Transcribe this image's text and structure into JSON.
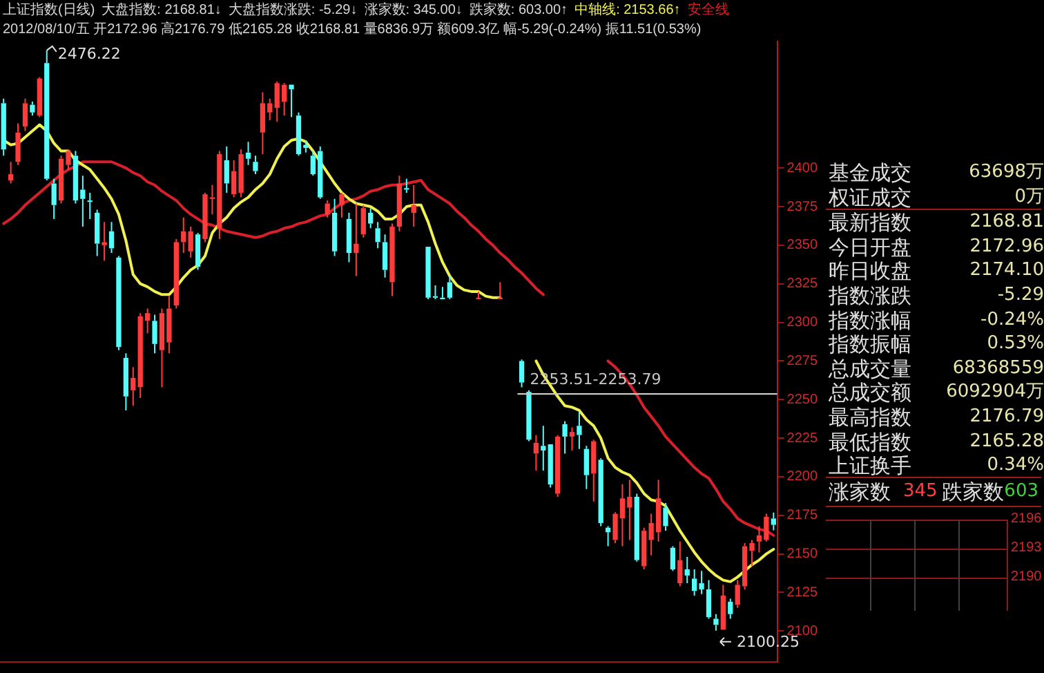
{
  "chart_data": [
    {
      "type": "candlestick",
      "title": "上证指数(日线)",
      "subtitle": "2012/08/10/五 开2172.96 高2176.79 低2165.28 收2168.81 量6836.9万 额609.3亿 幅-5.29(-0.24%) 振11.51(0.53%)",
      "annotations": [
        "大盘指数: 2168.81↓",
        "大盘指数涨跌: -5.29↓",
        "涨家数: 345.00↓",
        "跌家数: 603.00↑"
      ],
      "value_labels": [
        null,
        null,
        null,
        null,
        null,
        null,
        "2476.22",
        null,
        null,
        null,
        null,
        null,
        null,
        null,
        null,
        null,
        null,
        null,
        null,
        null,
        null,
        null,
        null,
        null,
        null,
        null,
        null,
        null,
        null,
        null,
        null,
        null,
        null,
        null,
        null,
        null,
        null,
        null,
        null,
        null,
        null,
        null,
        null,
        null,
        null,
        null,
        null,
        null,
        null,
        null,
        null,
        null,
        null,
        null,
        null,
        null,
        null,
        null,
        null,
        null,
        null,
        null,
        null,
        null,
        null,
        null,
        null,
        null,
        null,
        null,
        null,
        null,
        null,
        null,
        null,
        null,
        null,
        null,
        null,
        null,
        null,
        null,
        null,
        null,
        null,
        null,
        null,
        null,
        null,
        null,
        null,
        null,
        null,
        null,
        null,
        null,
        null,
        null,
        null,
        "2100.25",
        null,
        null,
        null,
        null,
        null,
        null,
        null,
        null
      ],
      "categories": [
        null,
        null,
        null,
        null,
        null,
        null,
        null,
        null,
        null,
        null,
        null,
        null,
        null,
        null,
        null,
        null,
        null,
        null,
        null,
        null,
        null,
        null,
        null,
        null,
        null,
        null,
        null,
        null,
        null,
        null,
        null,
        null,
        null,
        null,
        null,
        null,
        null,
        null,
        null,
        null,
        null,
        null,
        null,
        null,
        null,
        null,
        null,
        null,
        null,
        null,
        null,
        null,
        null,
        null,
        null,
        null,
        null,
        null,
        null,
        null,
        null,
        null,
        null,
        null,
        null,
        null,
        null,
        null,
        null,
        null,
        null,
        null,
        null,
        null,
        null,
        null,
        null,
        null,
        null,
        null,
        null,
        null,
        null,
        null,
        null,
        null,
        null,
        null,
        null,
        null,
        null,
        null,
        null,
        null,
        null,
        null,
        null,
        null,
        null,
        null,
        null,
        null,
        null,
        null,
        null,
        null,
        null,
        null
      ],
      "ohlc": [
        [
          2442,
          2445,
          2408,
          2412
        ],
        [
          2392,
          2404,
          2390,
          2396
        ],
        [
          2404,
          2429,
          2402,
          2423
        ],
        [
          2427,
          2445,
          2424,
          2442
        ],
        [
          2441,
          2443,
          2434,
          2436
        ],
        [
          2434,
          2459,
          2433,
          2458
        ],
        [
          2468,
          2476.22,
          2392,
          2393
        ],
        [
          2390,
          2393,
          2367,
          2376
        ],
        [
          2379,
          2408,
          2377,
          2406
        ],
        [
          2402,
          2412,
          2399,
          2411
        ],
        [
          2408,
          2411,
          2377,
          2379
        ],
        [
          2386,
          2395,
          2362,
          2380
        ],
        [
          2379,
          2384,
          2367,
          2378
        ],
        [
          2371,
          2373,
          2343,
          2351
        ],
        [
          2350,
          2365,
          2340,
          2352
        ],
        [
          2359,
          2365,
          2345,
          2348
        ],
        [
          2342,
          2343,
          2282,
          2284
        ],
        [
          2277,
          2280,
          2243,
          2252
        ],
        [
          2256,
          2271,
          2246,
          2264
        ],
        [
          2258,
          2306,
          2251,
          2304
        ],
        [
          2301,
          2309,
          2293,
          2306
        ],
        [
          2301,
          2305,
          2280,
          2286
        ],
        [
          2282,
          2309,
          2258,
          2306
        ],
        [
          2287,
          2317,
          2280,
          2309
        ],
        [
          2311,
          2354,
          2309,
          2352
        ],
        [
          2352,
          2368,
          2345,
          2359
        ],
        [
          2346,
          2362,
          2342,
          2359
        ],
        [
          2357,
          2358,
          2334,
          2336
        ],
        [
          2354,
          2384,
          2352,
          2383
        ],
        [
          2380,
          2389,
          2370,
          2381
        ],
        [
          2361,
          2411,
          2354,
          2409
        ],
        [
          2405,
          2414,
          2384,
          2390
        ],
        [
          2383,
          2405,
          2381,
          2398
        ],
        [
          2384,
          2412,
          2381,
          2409
        ],
        [
          2410,
          2417,
          2402,
          2406
        ],
        [
          2404,
          2408,
          2396,
          2398
        ],
        [
          2423,
          2449,
          2409,
          2442
        ],
        [
          2436,
          2445,
          2431,
          2442
        ],
        [
          2439,
          2456,
          2430,
          2455
        ],
        [
          2443,
          2455,
          2434,
          2454
        ],
        [
          2454,
          2454,
          2433,
          2451
        ],
        [
          2434,
          2436,
          2408,
          2409
        ],
        [
          2415,
          2418,
          2410,
          2413
        ],
        [
          2408,
          2411,
          2395,
          2396
        ],
        [
          2411,
          2414,
          2380,
          2381
        ],
        [
          2370,
          2379,
          2368,
          2377
        ],
        [
          2371,
          2380,
          2343,
          2346
        ],
        [
          2376,
          2384,
          2368,
          2383
        ],
        [
          2367,
          2371,
          2339,
          2345
        ],
        [
          2345,
          2377,
          2330,
          2351
        ],
        [
          2357,
          2376,
          2355,
          2374
        ],
        [
          2371,
          2374,
          2361,
          2364
        ],
        [
          2361,
          2365,
          2348,
          2352
        ],
        [
          2352,
          2357,
          2329,
          2334
        ],
        [
          2326,
          2364,
          2317,
          2362
        ],
        [
          2362,
          2395,
          2359,
          2390
        ],
        [
          2387,
          2393,
          2384,
          2386
        ],
        [
          2371,
          2389,
          2362,
          2376
        ],
        null,
        [
          2349,
          2349,
          2315,
          2316
        ],
        [
          2317,
          2324,
          2315,
          2316
        ],
        [
          2316,
          2323,
          2315,
          2315
        ],
        [
          2326,
          2330,
          2315,
          2316
        ],
        null,
        null,
        null,
        [
          2316,
          2320,
          2315,
          2316
        ],
        null,
        null,
        [
          2316,
          2326,
          2315,
          2316
        ],
        null,
        null,
        [
          2275,
          2276,
          2258,
          2261
        ],
        [
          2255,
          2256,
          2223,
          2224
        ],
        [
          2215,
          2227,
          2204,
          2222
        ],
        [
          2220,
          2233,
          2204,
          2217
        ],
        [
          2221,
          2221,
          2193,
          2195
        ],
        [
          2189,
          2227,
          2187,
          2226
        ],
        [
          2234,
          2236,
          2215,
          2226
        ],
        [
          2226,
          2232,
          2217,
          2229
        ],
        [
          2233,
          2242,
          2218,
          2227
        ],
        [
          2218,
          2220,
          2192,
          2201
        ],
        [
          2202,
          2224,
          2184,
          2223
        ],
        [
          2211,
          2212,
          2168,
          2170
        ],
        [
          2167,
          2168,
          2155,
          2164
        ],
        [
          2159,
          2177,
          2157,
          2176
        ],
        [
          2173,
          2195,
          2155,
          2186
        ],
        [
          2180,
          2198,
          2159,
          2187
        ],
        [
          2187,
          2189,
          2145,
          2146
        ],
        [
          2142,
          2167,
          2140,
          2165
        ],
        [
          2159,
          2176,
          2149,
          2170
        ],
        [
          2164,
          2198,
          2158,
          2186
        ],
        [
          2180,
          2183,
          2165,
          2168
        ],
        [
          2154,
          2155,
          2139,
          2140
        ],
        [
          2131,
          2158,
          2129,
          2146
        ],
        [
          2140,
          2148,
          2131,
          2136
        ],
        [
          2134,
          2140,
          2123,
          2126
        ],
        [
          2131,
          2139,
          2124,
          2127
        ],
        [
          2127,
          2133,
          2108,
          2109
        ],
        [
          2108,
          2111,
          2100.25,
          2104
        ],
        [
          2101,
          2130,
          2101,
          2123
        ],
        [
          2119,
          2121,
          2108,
          2111
        ],
        [
          2117,
          2133,
          2115,
          2130
        ],
        [
          2129,
          2157,
          2127,
          2155
        ],
        [
          2152,
          2159,
          2142,
          2157
        ],
        [
          2158,
          2168,
          2151,
          2162
        ],
        [
          2159,
          2176,
          2158,
          2174
        ],
        [
          2172.96,
          2176.79,
          2165.28,
          2168.81
        ]
      ],
      "colors": [
        "#54fcfc",
        "#ff3c3c",
        "#ff3c3c",
        "#ff3c3c",
        "#54fcfc",
        "#ff3c3c",
        "#54fcfc",
        "#54fcfc",
        "#ff3c3c",
        "#ff3c3c",
        "#54fcfc",
        "#54fcfc",
        "#54fcfc",
        "#54fcfc",
        "#ff3c3c",
        "#54fcfc",
        "#54fcfc",
        "#54fcfc",
        "#ff3c3c",
        "#ff3c3c",
        "#ff3c3c",
        "#54fcfc",
        "#ff3c3c",
        "#ff3c3c",
        "#ff3c3c",
        "#ff3c3c",
        "#ff3c3c",
        "#54fcfc",
        "#ff3c3c",
        "#ff3c3c",
        "#ff3c3c",
        "#54fcfc",
        "#ff3c3c",
        "#ff3c3c",
        "#54fcfc",
        "#54fcfc",
        "#ff3c3c",
        "#ff3c3c",
        "#ff3c3c",
        "#ff3c3c",
        "#54fcfc",
        "#54fcfc",
        "#54fcfc",
        "#54fcfc",
        "#54fcfc",
        "#ff3c3c",
        "#54fcfc",
        "#ff3c3c",
        "#54fcfc",
        "#ff3c3c",
        "#ff3c3c",
        "#54fcfc",
        "#54fcfc",
        "#54fcfc",
        "#ff3c3c",
        "#ff3c3c",
        "#54fcfc",
        "#ff3c3c",
        null,
        "#54fcfc",
        "#54fcfc",
        "#54fcfc",
        "#54fcfc",
        null,
        null,
        null,
        "#ff3c3c",
        null,
        null,
        "#ff3c3c",
        null,
        null,
        "#54fcfc",
        "#54fcfc",
        "#ff3c3c",
        "#54fcfc",
        "#54fcfc",
        "#ff3c3c",
        "#54fcfc",
        "#ff3c3c",
        "#54fcfc",
        "#54fcfc",
        "#ff3c3c",
        "#54fcfc",
        "#54fcfc",
        "#ff3c3c",
        "#ff3c3c",
        "#ff3c3c",
        "#54fcfc",
        "#ff3c3c",
        "#ff3c3c",
        "#ff3c3c",
        "#54fcfc",
        "#54fcfc",
        "#ff3c3c",
        "#54fcfc",
        "#54fcfc",
        "#54fcfc",
        "#54fcfc",
        "#54fcfc",
        "#ff3c3c",
        "#54fcfc",
        "#ff3c3c",
        "#ff3c3c",
        "#ff3c3c",
        "#ff3c3c",
        "#ff3c3c",
        "#54fcfc"
      ],
      "series": [
        {
          "type": "line",
          "name": "中轴线: 2153.66↑",
          "color": "#f0f050",
          "values": [
            2418,
            2415,
            2416,
            2420,
            2424,
            2428,
            2424,
            2416,
            2411,
            2411,
            2405,
            2402,
            2399,
            2393,
            2387,
            2380,
            2370,
            2353,
            2331,
            2325,
            2323,
            2320,
            2318,
            2318,
            2323,
            2329,
            2334,
            2337,
            2343,
            2358,
            2364,
            2368,
            2374,
            2378,
            2381,
            2386,
            2390,
            2396,
            2406,
            2414,
            2418,
            2419,
            2417,
            2411,
            2404,
            2397,
            2390,
            2384,
            2380,
            2377,
            2376,
            2375,
            2372,
            2367,
            2367,
            2370,
            2375,
            2376,
            2376,
            2365,
            2351,
            2339,
            2330,
            2324,
            2321,
            2320,
            2320,
            2317,
            2316,
            2316,
            null,
            null,
            null,
            null,
            2275,
            2266,
            2259,
            2252,
            2246,
            2245,
            2243,
            2237,
            2233,
            2225,
            2212,
            2206,
            2203,
            2201,
            2196,
            2189,
            2185,
            2184,
            2181,
            2173,
            2165,
            2158,
            2151,
            2145,
            2140,
            2136,
            2133,
            2132,
            2135,
            2139,
            2143,
            2146,
            2150,
            2153
          ]
        },
        {
          "type": "line",
          "name": "安全线",
          "color": "#d8202a",
          "values": [
            2364,
            2367,
            2371,
            2376,
            2380,
            2384,
            2388,
            2392,
            2396,
            2399,
            2401,
            2404,
            2404,
            2404,
            2404,
            2404,
            2402,
            2400,
            2397,
            2395,
            2391,
            2389,
            2385,
            2382,
            2379,
            2374,
            2370,
            2367,
            2364,
            2363,
            2361,
            2359,
            2358,
            2357,
            2356,
            2355,
            2356,
            2358,
            2359,
            2361,
            2362,
            2364,
            2365,
            2367,
            2369,
            2370,
            2374,
            2377,
            2379,
            2380,
            2382,
            2385,
            2386,
            2388,
            2389,
            2389,
            2390,
            2391,
            2392,
            2386,
            2383,
            2380,
            2377,
            2372,
            2368,
            2363,
            2359,
            2354,
            2350,
            2345,
            2341,
            2336,
            2332,
            2327,
            2322,
            2318,
            null,
            null,
            null,
            null,
            null,
            null,
            null,
            null,
            2275,
            2271,
            2266,
            2260,
            2253,
            2245,
            2239,
            2233,
            2226,
            2221,
            2216,
            2211,
            2206,
            2202,
            2199,
            2192,
            2184,
            2179,
            2173,
            2170,
            2168,
            2166,
            2165,
            2162
          ]
        }
      ],
      "bands": [
        {
          "axis": "y",
          "from": 2253.51,
          "to": 2253.79,
          "label": "2253.51-2253.79",
          "color": "#c8c8c8"
        }
      ],
      "ylim": [
        2080,
        2482
      ],
      "yticks": [
        2100,
        2125,
        2150,
        2175,
        2200,
        2225,
        2250,
        2275,
        2300,
        2325,
        2350,
        2375,
        2400
      ],
      "legend": "top right",
      "tick_labels": "y"
    },
    {
      "type": "other",
      "annotations": [
        "基金成交",
        "63698万",
        "权证成交",
        "0万",
        "最新指数",
        "2168.81",
        "今日开盘",
        "2172.96",
        "昨日收盘",
        "2174.10",
        "指数涨跌",
        "-5.29",
        "指数涨幅",
        "-0.24%",
        "指数振幅",
        "0.53%",
        "总成交量",
        "68368559",
        "总成交额",
        "6092904万",
        "最高指数",
        "2176.79",
        "最低指数",
        "2165.28",
        "上证换手",
        "0.34%",
        "涨家数",
        "345",
        "跌家数",
        "603",
        "2196",
        "2193",
        "2190"
      ]
    }
  ]
}
